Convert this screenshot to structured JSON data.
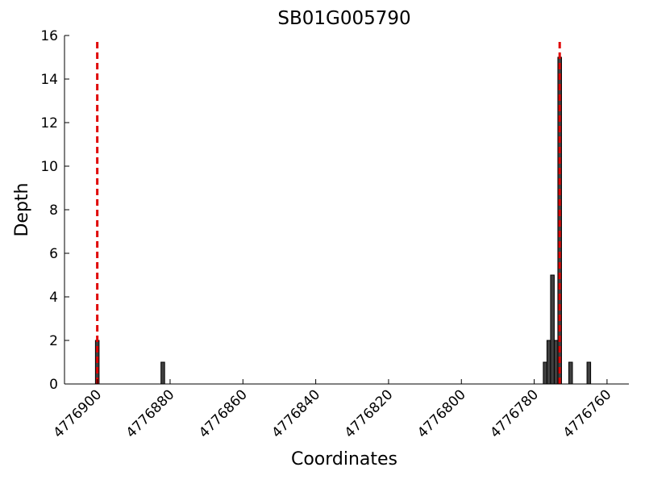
{
  "chart_data": {
    "type": "bar",
    "title": "SB01G005790",
    "x_label": "Coordinates",
    "y_label": "Depth",
    "x": [
      4776900,
      4776882,
      4776777,
      4776776,
      4776775,
      4776774,
      4776773,
      4776770,
      4776765
    ],
    "values": [
      2,
      1,
      1,
      2,
      5,
      2,
      15,
      1,
      1
    ],
    "color": "#404040",
    "xlim": [
      4776909,
      4776754
    ],
    "xticks": [
      4776900,
      4776880,
      4776860,
      4776840,
      4776820,
      4776800,
      4776780,
      4776760
    ],
    "ylim": [
      0,
      16
    ],
    "yticks": [
      0,
      2,
      4,
      6,
      8,
      10,
      12,
      14,
      16
    ],
    "vlines": {
      "values": [
        4776900,
        4776773
      ],
      "color": "#e00000"
    }
  }
}
